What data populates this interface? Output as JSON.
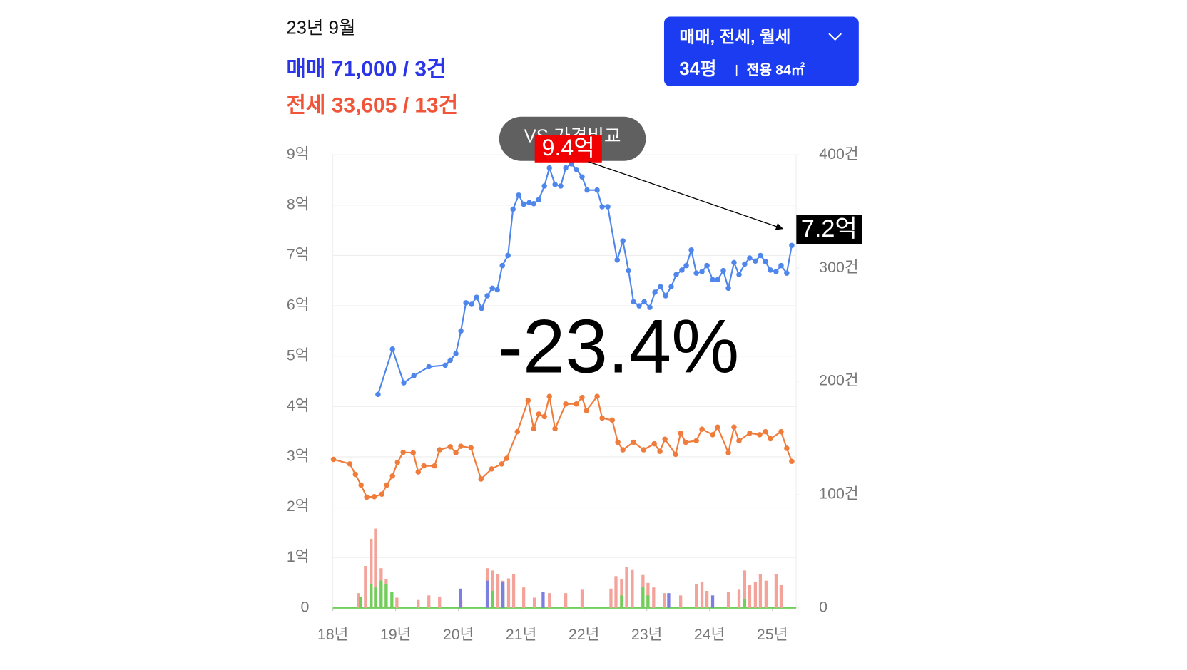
{
  "header": {
    "date": "23년 9월",
    "sale": "매매 71,000 / 3건",
    "jeonse": "전세 33,605 / 13건"
  },
  "filter_button": {
    "label": "매매, 전세, 월세",
    "size": "34평",
    "area": "전용 84㎡"
  },
  "compare_button": "VS 가격비교",
  "chart_data": {
    "type": "line",
    "xlim": [
      18,
      25.38
    ],
    "xticks": [
      {
        "value": 18,
        "label": "18년"
      },
      {
        "value": 19,
        "label": "19년"
      },
      {
        "value": 20,
        "label": "20년"
      },
      {
        "value": 21,
        "label": "21년"
      },
      {
        "value": 22,
        "label": "22년"
      },
      {
        "value": 23,
        "label": "23년"
      },
      {
        "value": 24,
        "label": "24년"
      },
      {
        "value": 25,
        "label": "25년"
      }
    ],
    "ylim": [
      0,
      9
    ],
    "yticks": [
      0,
      {
        "value": 1,
        "label": "1억"
      },
      {
        "value": 2,
        "label": "2억"
      },
      {
        "value": 3,
        "label": "3억"
      },
      {
        "value": 4,
        "label": "4억"
      },
      {
        "value": 5,
        "label": "5억"
      },
      {
        "value": 6,
        "label": "6억"
      },
      {
        "value": 7,
        "label": "7억"
      },
      {
        "value": 8,
        "label": "8억"
      },
      {
        "value": 9,
        "label": "9억"
      }
    ],
    "y2lim": [
      0,
      400
    ],
    "y2ticks": [
      0,
      {
        "value": 100,
        "label": "100건"
      },
      {
        "value": 200,
        "label": "200건"
      },
      {
        "value": 300,
        "label": "300건"
      },
      {
        "value": 400,
        "label": "400건"
      }
    ],
    "grid": true,
    "series": [
      {
        "type": "line",
        "color": "#4f86ec",
        "x": [
          18.72,
          18.95,
          19.13,
          19.29,
          19.53,
          19.79,
          19.87,
          19.96,
          20.04,
          20.12,
          20.21,
          20.29,
          20.37,
          20.46,
          20.54,
          20.62,
          20.7,
          20.79,
          20.87,
          20.96,
          21.04,
          21.13,
          21.2,
          21.28,
          21.37,
          21.45,
          21.54,
          21.63,
          21.71,
          21.8,
          21.88,
          21.97,
          22.05,
          22.21,
          22.29,
          22.38,
          22.53,
          22.62,
          22.71,
          22.79,
          22.88,
          22.96,
          23.05,
          23.13,
          23.22,
          23.3,
          23.39,
          23.47,
          23.56,
          23.63,
          23.71,
          23.79,
          23.88,
          23.96,
          24.05,
          24.13,
          24.22,
          24.3,
          24.39,
          24.47,
          24.56,
          24.64,
          24.73,
          24.81,
          24.89,
          24.97,
          25.06,
          25.14,
          25.23,
          25.31
        ],
        "values": [
          4.24,
          5.14,
          4.47,
          4.61,
          4.79,
          4.82,
          4.92,
          5.05,
          5.5,
          6.06,
          6.03,
          6.17,
          5.95,
          6.2,
          6.35,
          6.32,
          6.8,
          7.0,
          7.92,
          8.2,
          8.02,
          8.05,
          8.03,
          8.11,
          8.38,
          8.74,
          8.41,
          8.38,
          8.74,
          8.82,
          8.71,
          8.56,
          8.3,
          8.3,
          7.97,
          7.97,
          6.91,
          7.29,
          6.7,
          6.08,
          6.0,
          6.08,
          5.97,
          6.27,
          6.38,
          6.2,
          6.38,
          6.62,
          6.71,
          6.8,
          7.11,
          6.65,
          6.68,
          6.8,
          6.52,
          6.52,
          6.7,
          6.35,
          6.86,
          6.62,
          6.83,
          6.95,
          6.89,
          7.0,
          6.88,
          6.71,
          6.68,
          6.8,
          6.65,
          7.2
        ]
      },
      {
        "type": "line",
        "color": "#f07c3c",
        "x": [
          18.01,
          18.27,
          18.36,
          18.45,
          18.54,
          18.66,
          18.78,
          18.86,
          18.95,
          19.03,
          19.12,
          19.28,
          19.36,
          19.45,
          19.62,
          19.7,
          19.87,
          19.96,
          20.04,
          20.2,
          20.36,
          20.53,
          20.69,
          20.77,
          20.94,
          21.11,
          21.2,
          21.28,
          21.37,
          21.45,
          21.54,
          21.71,
          21.88,
          21.97,
          22.04,
          22.21,
          22.29,
          22.45,
          22.54,
          22.62,
          22.79,
          22.95,
          23.12,
          23.21,
          23.29,
          23.46,
          23.54,
          23.62,
          23.79,
          23.88,
          24.05,
          24.13,
          24.3,
          24.39,
          24.47,
          24.64,
          24.8,
          24.89,
          24.97,
          25.14,
          25.23,
          25.31
        ],
        "values": [
          2.95,
          2.86,
          2.65,
          2.44,
          2.2,
          2.21,
          2.26,
          2.44,
          2.62,
          2.89,
          3.09,
          3.08,
          2.7,
          2.82,
          2.82,
          3.14,
          3.2,
          3.08,
          3.21,
          3.18,
          2.56,
          2.76,
          2.86,
          2.97,
          3.5,
          4.12,
          3.56,
          3.85,
          3.8,
          4.2,
          3.56,
          4.05,
          4.05,
          4.18,
          3.92,
          4.2,
          3.77,
          3.73,
          3.29,
          3.14,
          3.29,
          3.14,
          3.26,
          3.11,
          3.35,
          3.05,
          3.47,
          3.29,
          3.32,
          3.55,
          3.44,
          3.59,
          3.08,
          3.59,
          3.32,
          3.47,
          3.44,
          3.5,
          3.36,
          3.5,
          3.17,
          2.91
        ]
      },
      {
        "type": "bar",
        "axis": "y2",
        "color": "#f4a39a",
        "x": [
          18.41,
          18.52,
          18.61,
          18.68,
          18.77,
          18.85,
          19.02,
          19.36,
          19.53,
          19.7,
          20.04,
          20.46,
          20.54,
          20.63,
          20.71,
          20.8,
          20.88,
          21.04,
          21.21,
          21.45,
          21.71,
          21.97,
          22.43,
          22.51,
          22.6,
          22.68,
          22.77,
          22.94,
          23.02,
          23.11,
          23.28,
          23.54,
          23.79,
          23.88,
          23.96,
          24.3,
          24.47,
          24.56,
          24.64,
          24.73,
          24.81,
          24.9,
          25.06,
          25.14
        ],
        "values": [
          13,
          37,
          61,
          70,
          35,
          25,
          9,
          7,
          11,
          10,
          7,
          35,
          33,
          30,
          24,
          26,
          30,
          18,
          9,
          13,
          13,
          16,
          17,
          28,
          25,
          36,
          34,
          29,
          22,
          18,
          13,
          11,
          21,
          23,
          15,
          14,
          16,
          33,
          20,
          23,
          30,
          24,
          30,
          20
        ]
      },
      {
        "type": "bar",
        "axis": "y2",
        "color": "#6fcf5a",
        "x": [
          18.44,
          18.61,
          18.68,
          18.77,
          18.85,
          18.94,
          20.54,
          20.71,
          22.6,
          22.94,
          23.02,
          24.56
        ],
        "values": [
          10,
          21,
          18,
          24,
          21,
          14,
          15,
          17,
          11,
          18,
          11,
          8
        ]
      },
      {
        "type": "bar",
        "axis": "y2",
        "color": "#7b7fe0",
        "x": [
          20.03,
          20.46,
          20.71,
          21.35,
          23.35,
          24.05
        ],
        "values": [
          17,
          24,
          23,
          14,
          13,
          11
        ]
      }
    ],
    "annotations": {
      "peak": "9.4억",
      "last": "7.2억",
      "change": "-23.4%"
    }
  }
}
